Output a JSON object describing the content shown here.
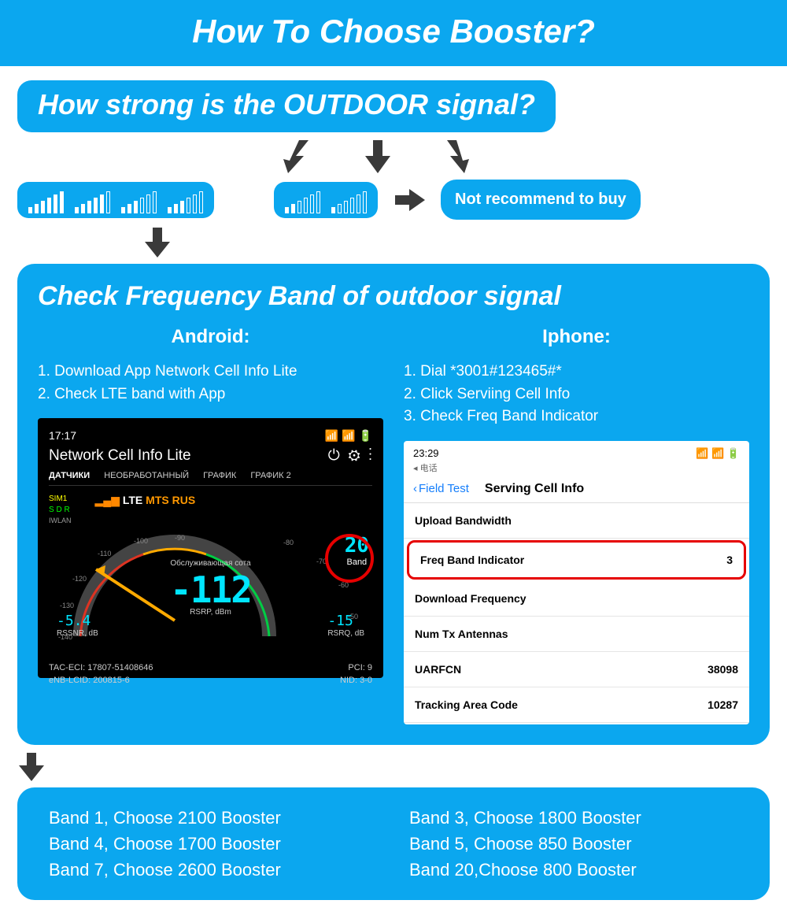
{
  "colors": {
    "primary": "#0ba7ef",
    "highlight": "#e60000",
    "cyan": "#00e5ff",
    "dark_arrow": "#3a3a3a"
  },
  "title": "How To Choose Booster?",
  "question": "How strong is the OUTDOOR signal?",
  "signal_strong": {
    "groups": [
      [
        5,
        5,
        5,
        4,
        5,
        5
      ],
      [
        5,
        5,
        5,
        5,
        5,
        0
      ],
      [
        5,
        5,
        5,
        0,
        0,
        0
      ],
      [
        5,
        5,
        5,
        0,
        0,
        0
      ]
    ]
  },
  "signal_weak": {
    "groups": [
      [
        5,
        5,
        0,
        0,
        0,
        0
      ],
      [
        5,
        0,
        0,
        0,
        0,
        0
      ]
    ]
  },
  "not_recommend": "Not recommend to buy",
  "panel_title": "Check Frequency Band of outdoor signal",
  "android": {
    "title": "Android:",
    "steps": [
      "1. Download App Network Cell Info Lite",
      "2. Check LTE band with App"
    ],
    "status_time": "17:17",
    "app_title": "Network Cell Info Lite",
    "tabs": [
      "ДАТЧИКИ",
      "НЕОБРАБОТАННЫЙ",
      "ГРАФИК",
      "ГРАФИК 2"
    ],
    "sim": "SIM1",
    "sdr": "S D R",
    "iwlan": "IWLAN",
    "net_lte": "LTE",
    "net_op": "MTS RUS",
    "band_num": "20",
    "band_lbl": "Band",
    "gauge_val": "-112",
    "gauge_cell": "Обслуживающая сота",
    "gauge_unit": "RSRP,  dBm",
    "rssnr_v": "-5.4",
    "rssnr_l": "RSSNR, dB",
    "rsrq_v": "-15",
    "rsrq_l": "RSRQ, dB",
    "ticks": [
      "-140",
      "-130",
      "-120",
      "-110",
      "-100",
      "-90",
      "-80",
      "-70",
      "-60",
      "-50"
    ],
    "foot_left1": "TAC-ECI:  17807-51408646",
    "foot_right1": "PCI:  9",
    "foot_left2": "eNB-LCID:  200815-6",
    "foot_right2": "NID:  3-0"
  },
  "iphone": {
    "title": "Iphone:",
    "steps": [
      "1. Dial *3001#123465#*",
      "2. Click Serviing Cell Info",
      "3. Check Freq Band Indicator"
    ],
    "status_time": "23:29",
    "back": "◂ 电话",
    "nav_back": "Field Test",
    "nav_title": "Serving Cell Info",
    "rows": [
      {
        "l": "Upload Bandwidth",
        "v": "",
        "hl": false
      },
      {
        "l": "Freq Band Indicator",
        "v": "3",
        "hl": true
      },
      {
        "l": "Download Frequency",
        "v": "",
        "hl": false
      },
      {
        "l": "Num Tx Antennas",
        "v": "",
        "hl": false
      },
      {
        "l": "UARFCN",
        "v": "38098",
        "hl": false
      },
      {
        "l": "Tracking Area Code",
        "v": "10287",
        "hl": false
      }
    ]
  },
  "results_left": [
    "Band 1, Choose 2100 Booster",
    "Band 4, Choose 1700 Booster",
    "Band 7, Choose 2600 Booster"
  ],
  "results_right": [
    "Band 3, Choose 1800 Booster",
    "Band 5, Choose 850 Booster",
    "Band 20,Choose 800 Booster"
  ]
}
